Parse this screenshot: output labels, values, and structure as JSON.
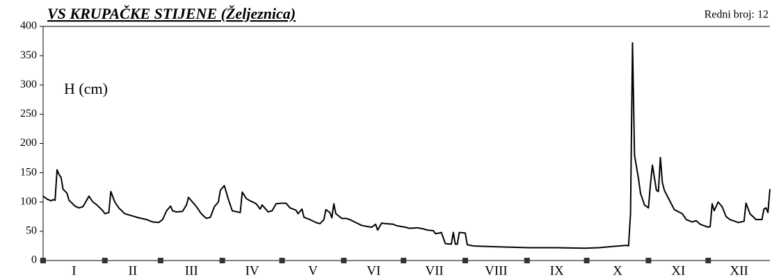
{
  "chart_data": {
    "type": "line",
    "title": "VS KRUPAČKE STIJENE (Željeznica)",
    "subtitle": "Redni broj: 12",
    "annotation": "H (cm)",
    "categories": [
      "I",
      "II",
      "III",
      "IV",
      "V",
      "VI",
      "VII",
      "VIII",
      "IX",
      "X",
      "XI",
      "XII"
    ],
    "xticks": [
      0,
      31,
      59,
      90,
      120,
      151,
      181,
      212,
      243,
      273,
      304,
      334
    ],
    "xlim": [
      0,
      365
    ],
    "ylim": [
      0,
      400
    ],
    "yticks": [
      0,
      50,
      100,
      150,
      200,
      250,
      300,
      350,
      400
    ],
    "grid": false,
    "color": "#000000",
    "x": [
      0,
      2,
      4,
      5,
      6,
      7,
      8,
      9,
      10,
      12,
      13,
      16,
      18,
      20,
      23,
      25,
      27,
      30,
      31,
      33,
      34,
      36,
      38,
      41,
      45,
      48,
      52,
      55,
      58,
      60,
      62,
      64,
      65,
      67,
      70,
      72,
      73,
      75,
      77,
      79,
      80,
      82,
      84,
      86,
      88,
      89,
      91,
      93,
      95,
      99,
      100,
      102,
      104,
      107,
      109,
      110,
      113,
      115,
      117,
      120,
      122,
      124,
      127,
      128,
      130,
      131,
      134,
      137,
      139,
      141,
      142,
      144,
      145,
      146,
      147,
      150,
      152,
      154,
      157,
      160,
      163,
      165,
      167,
      168,
      170,
      172,
      176,
      177,
      180,
      182,
      184,
      188,
      191,
      193,
      196,
      197,
      199,
      200,
      202,
      205,
      206,
      207,
      208,
      209,
      212,
      213,
      216,
      223,
      233,
      244,
      258,
      272,
      279,
      286,
      293,
      294,
      295,
      296,
      297,
      299,
      300,
      302,
      304,
      305,
      306,
      308,
      309,
      310,
      311,
      312,
      315,
      317,
      321,
      323,
      326,
      328,
      330,
      334,
      335,
      336,
      337,
      339,
      341,
      343,
      345,
      349,
      352,
      353,
      355,
      358,
      361,
      362,
      363,
      364,
      365
    ],
    "values": [
      110,
      105,
      102,
      104,
      103,
      155,
      147,
      142,
      122,
      115,
      103,
      93,
      90,
      92,
      110,
      100,
      95,
      85,
      80,
      82,
      118,
      100,
      90,
      80,
      76,
      73,
      70,
      66,
      65,
      70,
      85,
      93,
      85,
      83,
      84,
      95,
      108,
      100,
      92,
      82,
      78,
      72,
      74,
      92,
      100,
      120,
      128,
      105,
      85,
      82,
      117,
      106,
      102,
      97,
      88,
      95,
      83,
      85,
      97,
      98,
      98,
      90,
      86,
      80,
      88,
      74,
      70,
      65,
      63,
      70,
      87,
      82,
      73,
      97,
      80,
      72,
      72,
      70,
      65,
      60,
      58,
      57,
      62,
      52,
      64,
      63,
      62,
      60,
      58,
      57,
      55,
      56,
      54,
      52,
      51,
      46,
      47,
      48,
      29,
      28,
      48,
      28,
      28,
      48,
      47,
      27,
      25,
      24,
      23,
      22,
      22,
      21,
      22,
      24,
      26,
      25,
      80,
      372,
      180,
      140,
      115,
      95,
      90,
      130,
      163,
      120,
      118,
      176,
      133,
      120,
      100,
      87,
      80,
      70,
      66,
      68,
      62,
      57,
      58,
      97,
      85,
      100,
      92,
      75,
      70,
      65,
      67,
      98,
      80,
      70,
      70,
      88,
      90,
      82,
      122
    ]
  }
}
